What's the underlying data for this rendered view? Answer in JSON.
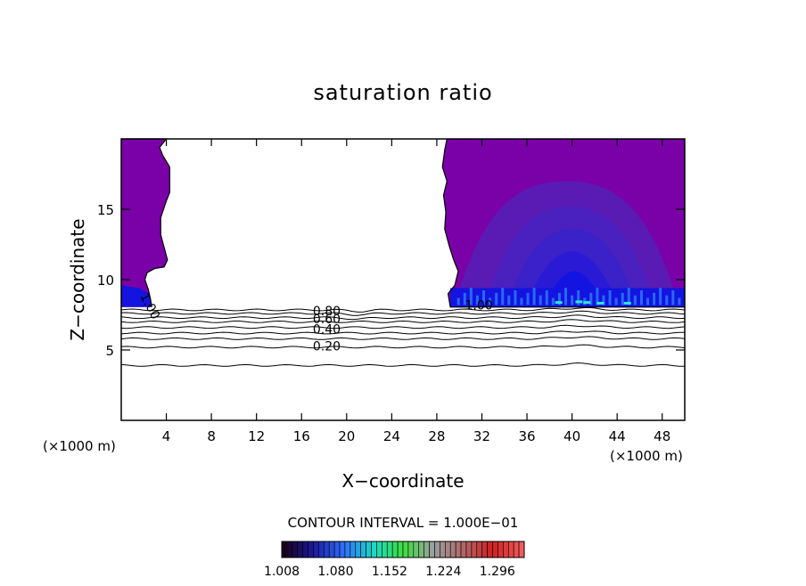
{
  "chart_data": {
    "type": "heatmap",
    "title": "saturation ratio",
    "xlabel": "X−coordinate",
    "ylabel": "Z−coordinate",
    "x_unit_left": "(×1000 m)",
    "x_unit_right": "(×1000 m)",
    "xlim": [
      0,
      50
    ],
    "ylim": [
      0,
      20
    ],
    "x_ticks": [
      4,
      8,
      12,
      16,
      20,
      24,
      28,
      32,
      36,
      40,
      44,
      48
    ],
    "x_tick_labels": [
      "4",
      "8",
      "12",
      "16",
      "20",
      "24",
      "28",
      "32",
      "36",
      "40",
      "44",
      "48"
    ],
    "y_ticks": [
      5,
      10,
      15
    ],
    "y_tick_labels": [
      "5",
      "10",
      "15"
    ],
    "contour_interval_text": "CONTOUR INTERVAL = 1.000E−01",
    "contour_labels": [
      {
        "text": "0.80",
        "x": 17.0,
        "y": 7.8
      },
      {
        "text": "0.60",
        "x": 17.0,
        "y": 7.2
      },
      {
        "text": "0.40",
        "x": 17.0,
        "y": 6.5
      },
      {
        "text": "0.20",
        "x": 17.0,
        "y": 5.3
      },
      {
        "text": "1.00",
        "x": 30.5,
        "y": 8.2
      },
      {
        "text": "1.00",
        "x": 2.0,
        "y": 9.0
      }
    ],
    "contour_levels": [
      {
        "level": 0.9,
        "z": 7.85
      },
      {
        "level": 0.8,
        "z": 7.6
      },
      {
        "level": 0.7,
        "z": 7.3
      },
      {
        "level": 0.6,
        "z": 7.0
      },
      {
        "level": 0.5,
        "z": 6.6
      },
      {
        "level": 0.4,
        "z": 6.2
      },
      {
        "level": 0.3,
        "z": 5.8
      },
      {
        "level": 0.2,
        "z": 5.2
      },
      {
        "level": 0.1,
        "z": 3.9
      }
    ],
    "colorbar": {
      "min": 1.008,
      "max": 1.332,
      "tick_labels": [
        "1.008",
        "1.080",
        "1.152",
        "1.224",
        "1.296"
      ],
      "colors": [
        "#1a0020",
        "#1a1aa0",
        "#2f6fff",
        "#19d9c8",
        "#3de03d",
        "#9aa0a0",
        "#b06a6a",
        "#d02020",
        "#f05a5a"
      ]
    },
    "supersaturated_regions": [
      {
        "name": "left",
        "x": [
          0,
          4.3
        ],
        "z": [
          8.0,
          20.0
        ],
        "value": 1.008
      },
      {
        "name": "right",
        "x": [
          28.5,
          50
        ],
        "z": [
          8.0,
          20.0
        ],
        "value": 1.008
      },
      {
        "name": "right-core",
        "x": [
          33,
          48
        ],
        "z": [
          8.0,
          17.0
        ],
        "value": 1.05
      }
    ],
    "fill_colors": {
      "purple": "#7a00a8",
      "violet": "#5a1ab4",
      "indigo": "#3a22c8",
      "blue": "#1414e0",
      "bright": "#2a78ff",
      "cyan": "#30e8d0"
    }
  }
}
